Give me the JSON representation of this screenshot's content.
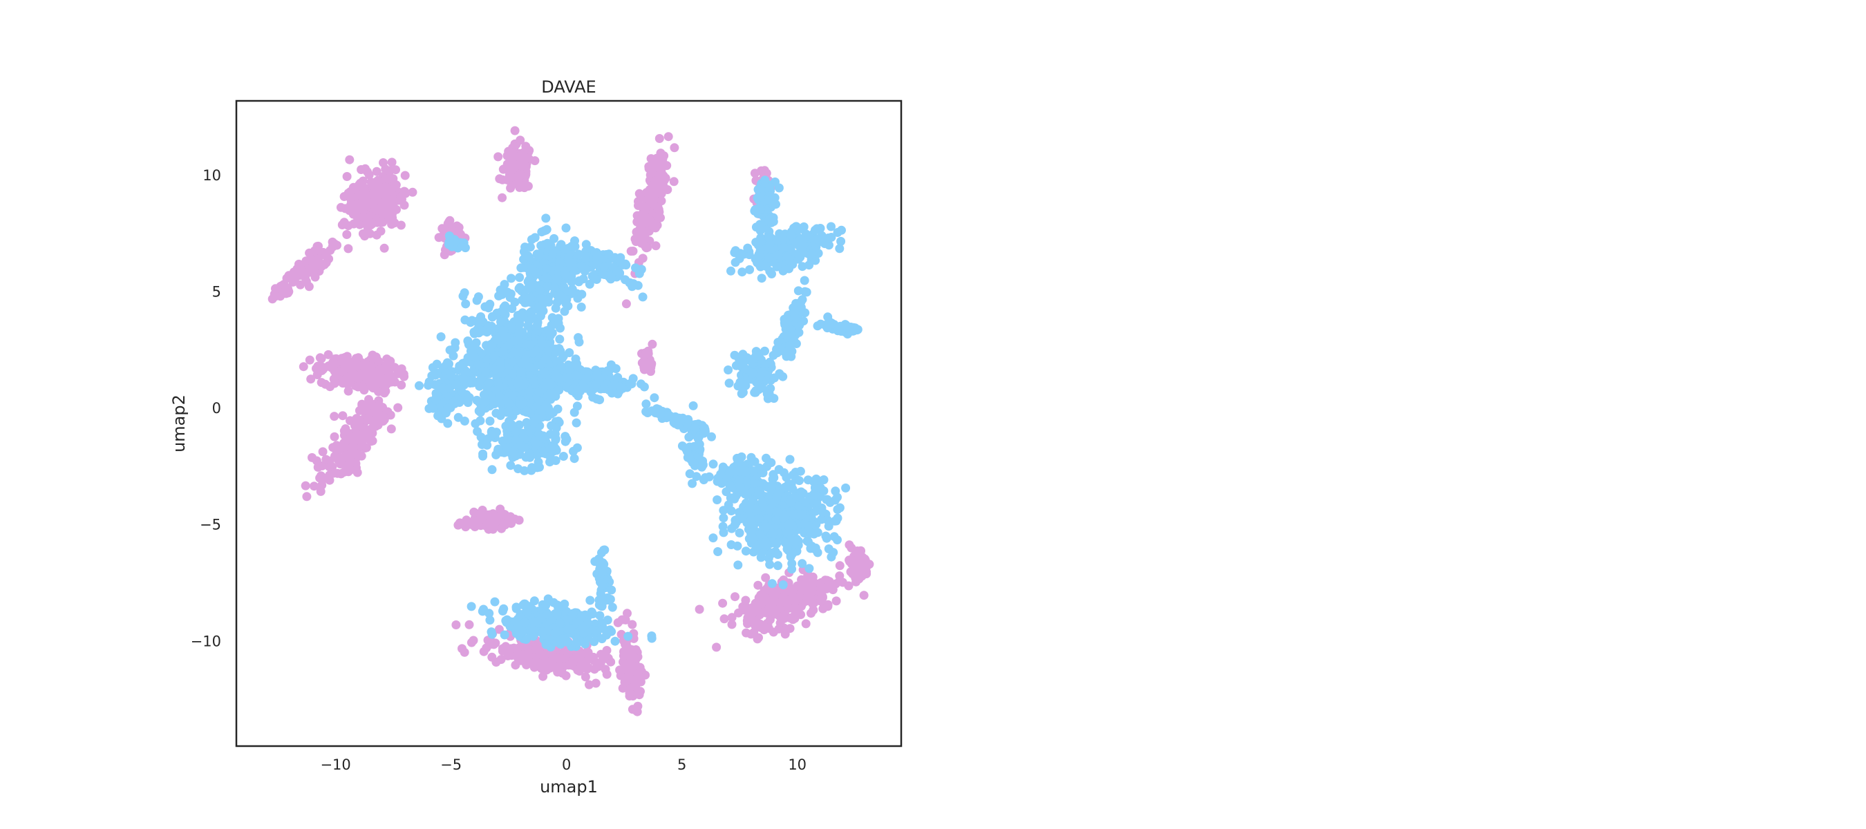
{
  "chart_data": {
    "type": "scatter",
    "title": "DAVAE",
    "xlabel": "umap1",
    "ylabel": "umap2",
    "xlim": [
      -14.3,
      14.5
    ],
    "ylim": [
      -14.5,
      13.2
    ],
    "xticks": [
      -10,
      -5,
      0,
      5,
      10
    ],
    "yticks": [
      -10,
      -5,
      0,
      5,
      10
    ],
    "grid": false,
    "legend": "none",
    "series": [
      {
        "color": "#dda0dd",
        "clusters": [
          {
            "cx": -8.3,
            "cy": 8.9,
            "sx": 1.0,
            "sy": 1.3,
            "rot": -35,
            "n": 260
          },
          {
            "cx": -11.0,
            "cy": 6.2,
            "sx": 1.3,
            "sy": 0.35,
            "rot": 40,
            "n": 60
          },
          {
            "cx": -12.3,
            "cy": 5.0,
            "sx": 0.4,
            "sy": 0.3,
            "rot": 0,
            "n": 30
          },
          {
            "cx": -2.1,
            "cy": 10.3,
            "sx": 0.55,
            "sy": 0.9,
            "rot": 0,
            "n": 120
          },
          {
            "cx": 3.7,
            "cy": 9.0,
            "sx": 0.45,
            "sy": 2.1,
            "rot": -12,
            "n": 200
          },
          {
            "cx": -9.0,
            "cy": 1.5,
            "sx": 1.5,
            "sy": 0.65,
            "rot": -5,
            "n": 230
          },
          {
            "cx": -9.1,
            "cy": -1.3,
            "sx": 0.65,
            "sy": 1.9,
            "rot": -38,
            "n": 200
          },
          {
            "cx": -5.0,
            "cy": 7.4,
            "sx": 0.4,
            "sy": 0.5,
            "rot": 0,
            "n": 70
          },
          {
            "cx": -3.4,
            "cy": -4.8,
            "sx": 0.9,
            "sy": 0.3,
            "rot": 5,
            "n": 110
          },
          {
            "cx": 2.8,
            "cy": -11.2,
            "sx": 0.35,
            "sy": 1.5,
            "rot": 8,
            "n": 110
          },
          {
            "cx": -1.0,
            "cy": -10.6,
            "sx": 2.4,
            "sy": 0.7,
            "rot": -12,
            "n": 220
          },
          {
            "cx": 9.6,
            "cy": -8.2,
            "sx": 2.0,
            "sy": 0.9,
            "rot": 22,
            "n": 280
          },
          {
            "cx": 12.6,
            "cy": -6.7,
            "sx": 0.45,
            "sy": 0.7,
            "rot": 0,
            "n": 60
          },
          {
            "cx": 8.5,
            "cy": 9.5,
            "sx": 0.25,
            "sy": 0.7,
            "rot": 0,
            "n": 40
          },
          {
            "cx": 3.5,
            "cy": 2.0,
            "sx": 0.25,
            "sy": 0.5,
            "rot": 0,
            "n": 30
          }
        ]
      },
      {
        "color": "#87cefa",
        "clusters": [
          {
            "cx": -2.2,
            "cy": 1.8,
            "sx": 2.0,
            "sy": 2.6,
            "rot": 0,
            "n": 750
          },
          {
            "cx": -0.6,
            "cy": 5.8,
            "sx": 1.3,
            "sy": 1.3,
            "rot": 0,
            "n": 260
          },
          {
            "cx": 1.6,
            "cy": 6.1,
            "sx": 1.2,
            "sy": 0.5,
            "rot": -25,
            "n": 110
          },
          {
            "cx": 0.9,
            "cy": 1.2,
            "sx": 2.0,
            "sy": 0.55,
            "rot": -10,
            "n": 160
          },
          {
            "cx": -1.5,
            "cy": -1.6,
            "sx": 1.4,
            "sy": 0.7,
            "rot": 0,
            "n": 160
          },
          {
            "cx": 4.8,
            "cy": -0.5,
            "sx": 1.3,
            "sy": 0.18,
            "rot": -22,
            "n": 70
          },
          {
            "cx": 9.5,
            "cy": 6.8,
            "sx": 1.8,
            "sy": 0.7,
            "rot": 15,
            "n": 200
          },
          {
            "cx": 8.6,
            "cy": 8.7,
            "sx": 0.45,
            "sy": 1.0,
            "rot": 0,
            "n": 70
          },
          {
            "cx": 9.8,
            "cy": 3.6,
            "sx": 0.35,
            "sy": 1.5,
            "rot": -20,
            "n": 90
          },
          {
            "cx": 8.2,
            "cy": 1.5,
            "sx": 0.9,
            "sy": 0.9,
            "rot": 0,
            "n": 90
          },
          {
            "cx": 11.8,
            "cy": 3.5,
            "sx": 0.8,
            "sy": 0.2,
            "rot": -10,
            "n": 40
          },
          {
            "cx": 9.3,
            "cy": -4.6,
            "sx": 2.1,
            "sy": 1.6,
            "rot": 0,
            "n": 460
          },
          {
            "cx": 7.5,
            "cy": -3.0,
            "sx": 1.0,
            "sy": 0.7,
            "rot": 0,
            "n": 90
          },
          {
            "cx": 5.6,
            "cy": -2.0,
            "sx": 0.35,
            "sy": 0.8,
            "rot": 0,
            "n": 40
          },
          {
            "cx": -0.6,
            "cy": -9.3,
            "sx": 2.2,
            "sy": 0.7,
            "rot": -8,
            "n": 330
          },
          {
            "cx": 1.6,
            "cy": -7.4,
            "sx": 0.3,
            "sy": 1.0,
            "rot": 0,
            "n": 60
          },
          {
            "cx": -5.2,
            "cy": 0.8,
            "sx": 0.7,
            "sy": 1.2,
            "rot": 0,
            "n": 90
          },
          {
            "cx": -4.8,
            "cy": 7.2,
            "sx": 0.3,
            "sy": 0.3,
            "rot": 0,
            "n": 20
          }
        ]
      }
    ]
  }
}
